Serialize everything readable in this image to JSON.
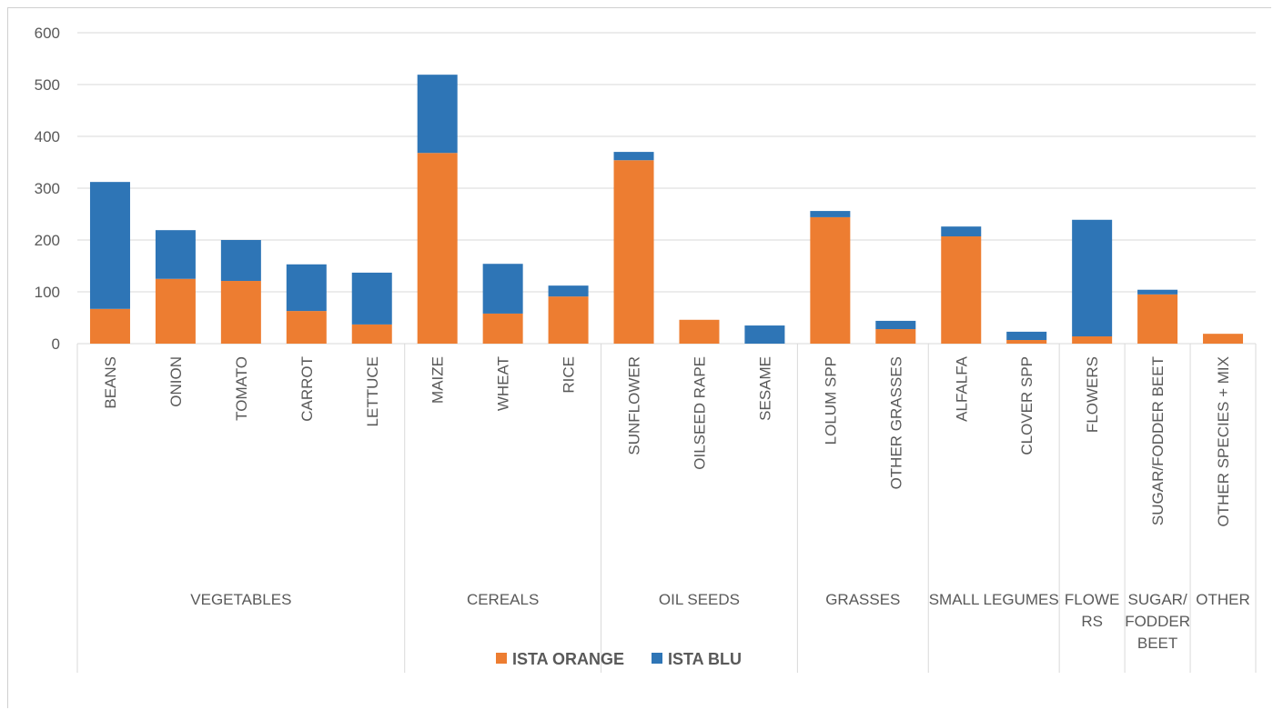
{
  "chart_data": {
    "type": "stacked_bar",
    "groups": [
      {
        "name": "VEGETABLES",
        "categories": [
          "BEANS",
          "ONION",
          "TOMATO",
          "CARROT",
          "LETTUCE"
        ]
      },
      {
        "name": "CEREALS",
        "categories": [
          "MAIZE",
          "WHEAT",
          "RICE"
        ]
      },
      {
        "name": "OIL SEEDS",
        "categories": [
          "SUNFLOWER",
          "OILSEED RAPE",
          "SESAME"
        ]
      },
      {
        "name": "GRASSES",
        "categories": [
          "LOLUM SPP",
          "OTHER GRASSES"
        ]
      },
      {
        "name": "SMALL LEGUMES",
        "categories": [
          "ALFALFA",
          "CLOVER SPP"
        ]
      },
      {
        "name": "FLOWERS",
        "categories": [
          "FLOWERS"
        ]
      },
      {
        "name": "SUGAR/FODDER BEET",
        "categories": [
          "SUGAR/FODDER BEET"
        ]
      },
      {
        "name": "OTHER",
        "categories": [
          "OTHER SPECIES + MIX"
        ]
      }
    ],
    "series": [
      {
        "name": "ISTA ORANGE",
        "color": "#ed7d31",
        "values": [
          67,
          125,
          121,
          63,
          37,
          368,
          58,
          91,
          354,
          46,
          0,
          244,
          28,
          207,
          7,
          14,
          95,
          19
        ]
      },
      {
        "name": "ISTA BLU",
        "color": "#2e75b6",
        "values": [
          245,
          94,
          79,
          90,
          100,
          151,
          96,
          21,
          16,
          0,
          35,
          12,
          16,
          19,
          16,
          225,
          9,
          0
        ]
      }
    ],
    "ylim": [
      0,
      600
    ],
    "yticks": [
      0,
      100,
      200,
      300,
      400,
      500,
      600
    ],
    "grid": true,
    "legend": "bottom"
  }
}
